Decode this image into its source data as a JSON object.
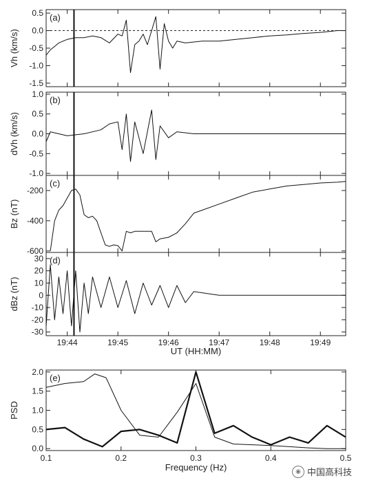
{
  "chart_data": [
    {
      "type": "line",
      "panel_label": "(a)",
      "ylabel": "Vh (km/s)",
      "ylim": [
        -1.6,
        0.6
      ],
      "yticks": [
        -1.5,
        -1.0,
        -0.5,
        0.0,
        0.5
      ],
      "ytick_labels": [
        "-1.5",
        "-1.0",
        "-0.5",
        "0.0",
        "0.5"
      ],
      "xlim": [
        "19:43:35",
        "19:49:30"
      ],
      "reference_line": {
        "y": 0.0,
        "style": "dotted"
      },
      "event_marker_time": "19:44:08",
      "series": [
        {
          "x": [
            "19:43:35",
            "19:43:40",
            "19:43:45",
            "19:43:50",
            "19:43:55",
            "19:44:00",
            "19:44:10",
            "19:44:20",
            "19:44:30",
            "19:44:40",
            "19:44:50",
            "19:45:00",
            "19:45:05",
            "19:45:10",
            "19:45:15",
            "19:45:20",
            "19:45:25",
            "19:45:30",
            "19:45:35",
            "19:45:40",
            "19:45:45",
            "19:45:50",
            "19:45:55",
            "19:46:00",
            "19:46:05",
            "19:46:10",
            "19:46:20",
            "19:46:40",
            "19:47:00",
            "19:47:20",
            "19:47:40",
            "19:48:00",
            "19:48:20",
            "19:48:40",
            "19:49:00",
            "19:49:20",
            "19:49:30"
          ],
          "y": [
            -0.7,
            -0.55,
            -0.45,
            -0.35,
            -0.3,
            -0.25,
            -0.2,
            -0.2,
            -0.15,
            -0.2,
            -0.35,
            -0.1,
            -0.15,
            0.3,
            -1.2,
            -0.4,
            -0.3,
            -0.1,
            -0.4,
            0.0,
            0.4,
            -1.1,
            0.2,
            -0.3,
            -0.5,
            -0.3,
            -0.35,
            -0.3,
            -0.3,
            -0.25,
            -0.2,
            -0.15,
            -0.12,
            -0.08,
            -0.05,
            0.0,
            0.0
          ]
        }
      ]
    },
    {
      "type": "line",
      "panel_label": "(b)",
      "ylabel": "dVh (km/s)",
      "ylim": [
        -1.05,
        1.05
      ],
      "yticks": [
        -1.0,
        -0.5,
        0.0,
        0.5,
        1.0
      ],
      "ytick_labels": [
        "-1.0",
        "-0.5",
        "0.0",
        "0.5",
        "1.0"
      ],
      "xlim": [
        "19:43:35",
        "19:49:30"
      ],
      "event_marker_time": "19:44:08",
      "series": [
        {
          "x": [
            "19:43:35",
            "19:43:40",
            "19:43:50",
            "19:44:00",
            "19:44:20",
            "19:44:40",
            "19:44:50",
            "19:45:00",
            "19:45:05",
            "19:45:10",
            "19:45:15",
            "19:45:20",
            "19:45:30",
            "19:45:40",
            "19:45:45",
            "19:45:50",
            "19:46:00",
            "19:46:10",
            "19:46:30",
            "19:47:00",
            "19:47:30",
            "19:48:00",
            "19:48:30",
            "19:49:00",
            "19:49:30"
          ],
          "y": [
            -0.2,
            0.05,
            0.0,
            -0.05,
            0.0,
            0.1,
            0.25,
            0.3,
            -0.4,
            0.5,
            -0.7,
            0.3,
            -0.5,
            0.6,
            -0.65,
            0.2,
            -0.1,
            0.05,
            0.0,
            0.0,
            0.0,
            0.0,
            0.0,
            0.0,
            0.0
          ]
        }
      ]
    },
    {
      "type": "line",
      "panel_label": "(c)",
      "ylabel": "Bz (nT)",
      "ylim": [
        -610,
        -100
      ],
      "yticks": [
        -600,
        -400,
        -200
      ],
      "ytick_labels": [
        "-600",
        "-400",
        "-200"
      ],
      "xlim": [
        "19:43:35",
        "19:49:30"
      ],
      "event_marker_time": "19:44:08",
      "series": [
        {
          "x": [
            "19:43:40",
            "19:43:45",
            "19:43:50",
            "19:43:55",
            "19:44:00",
            "19:44:05",
            "19:44:10",
            "19:44:15",
            "19:44:20",
            "19:44:25",
            "19:44:30",
            "19:44:35",
            "19:44:40",
            "19:44:45",
            "19:44:50",
            "19:44:55",
            "19:45:00",
            "19:45:05",
            "19:45:10",
            "19:45:15",
            "19:45:20",
            "19:45:30",
            "19:45:40",
            "19:45:45",
            "19:45:50",
            "19:46:00",
            "19:46:10",
            "19:46:20",
            "19:46:30",
            "19:46:40",
            "19:47:00",
            "19:47:20",
            "19:47:40",
            "19:48:00",
            "19:48:20",
            "19:48:40",
            "19:49:00",
            "19:49:20",
            "19:49:30"
          ],
          "y": [
            -600,
            -400,
            -330,
            -300,
            -250,
            -200,
            -190,
            -230,
            -360,
            -380,
            -370,
            -400,
            -480,
            -560,
            -570,
            -560,
            -565,
            -600,
            -470,
            -480,
            -470,
            -470,
            -470,
            -540,
            -520,
            -510,
            -480,
            -420,
            -350,
            -330,
            -290,
            -250,
            -210,
            -190,
            -170,
            -160,
            -150,
            -145,
            -140
          ]
        }
      ]
    },
    {
      "type": "line",
      "panel_label": "(d)",
      "ylabel": "dBz (nT)",
      "ylim": [
        -33,
        35
      ],
      "yticks": [
        -30,
        -20,
        -10,
        0,
        10,
        20,
        30
      ],
      "ytick_labels": [
        "-30",
        "-20",
        "-10",
        "0",
        "10",
        "20",
        "30"
      ],
      "xlim": [
        "19:43:35",
        "19:49:30"
      ],
      "event_marker_time": "19:44:08",
      "series": [
        {
          "x": [
            "19:43:35",
            "19:43:40",
            "19:43:45",
            "19:43:50",
            "19:43:55",
            "19:44:00",
            "19:44:05",
            "19:44:10",
            "19:44:15",
            "19:44:20",
            "19:44:25",
            "19:44:30",
            "19:44:40",
            "19:44:50",
            "19:45:00",
            "19:45:10",
            "19:45:20",
            "19:45:30",
            "19:45:40",
            "19:45:50",
            "19:46:00",
            "19:46:10",
            "19:46:20",
            "19:46:30",
            "19:47:00",
            "19:47:30",
            "19:48:00",
            "19:48:30",
            "19:49:00",
            "19:49:30"
          ],
          "y": [
            -25,
            25,
            -20,
            15,
            -15,
            20,
            -25,
            20,
            -30,
            10,
            -15,
            15,
            -10,
            15,
            -10,
            12,
            -15,
            10,
            -8,
            8,
            -10,
            8,
            -6,
            3,
            0,
            0,
            0,
            0,
            0,
            0
          ]
        }
      ]
    },
    {
      "type": "line",
      "panel_label": "(e)",
      "xlabel": "Frequency (Hz)",
      "ylabel": "PSD",
      "xlim": [
        0.1,
        0.5
      ],
      "ylim": [
        -0.05,
        2.05
      ],
      "xticks": [
        0.1,
        0.2,
        0.3,
        0.4,
        0.5
      ],
      "xtick_labels": [
        "0.1",
        "0.2",
        "0.3",
        "0.4",
        "0.5"
      ],
      "yticks": [
        0.0,
        0.5,
        1.0,
        1.5,
        2.0
      ],
      "ytick_labels": [
        "0.0",
        "0.5",
        "1.0",
        "1.5",
        "2.0"
      ],
      "series": [
        {
          "style": "thin",
          "x": [
            0.1,
            0.125,
            0.15,
            0.165,
            0.18,
            0.2,
            0.225,
            0.25,
            0.275,
            0.3,
            0.325,
            0.35,
            0.375,
            0.4,
            0.425,
            0.45,
            0.475,
            0.5
          ],
          "y": [
            1.6,
            1.7,
            1.75,
            1.95,
            1.85,
            1.0,
            0.35,
            0.3,
            0.95,
            1.7,
            0.3,
            0.12,
            0.1,
            0.08,
            0.05,
            0.02,
            0.0,
            0.0
          ]
        },
        {
          "style": "thick",
          "x": [
            0.1,
            0.125,
            0.15,
            0.175,
            0.2,
            0.225,
            0.25,
            0.275,
            0.3,
            0.325,
            0.35,
            0.375,
            0.4,
            0.425,
            0.45,
            0.475,
            0.5
          ],
          "y": [
            0.5,
            0.55,
            0.25,
            0.05,
            0.45,
            0.5,
            0.35,
            0.15,
            2.0,
            0.4,
            0.6,
            0.3,
            0.1,
            0.3,
            0.15,
            0.6,
            0.3
          ]
        }
      ]
    }
  ],
  "shared_x_axis": {
    "xlabel": "UT (HH:MM)",
    "tick_times": [
      "19:44:00",
      "19:45:00",
      "19:46:00",
      "19:47:00",
      "19:48:00",
      "19:49:00"
    ],
    "tick_labels": [
      "19:44",
      "19:45",
      "19:46",
      "19:47",
      "19:48",
      "19:49"
    ]
  },
  "watermark": {
    "text": "中国高科技"
  }
}
